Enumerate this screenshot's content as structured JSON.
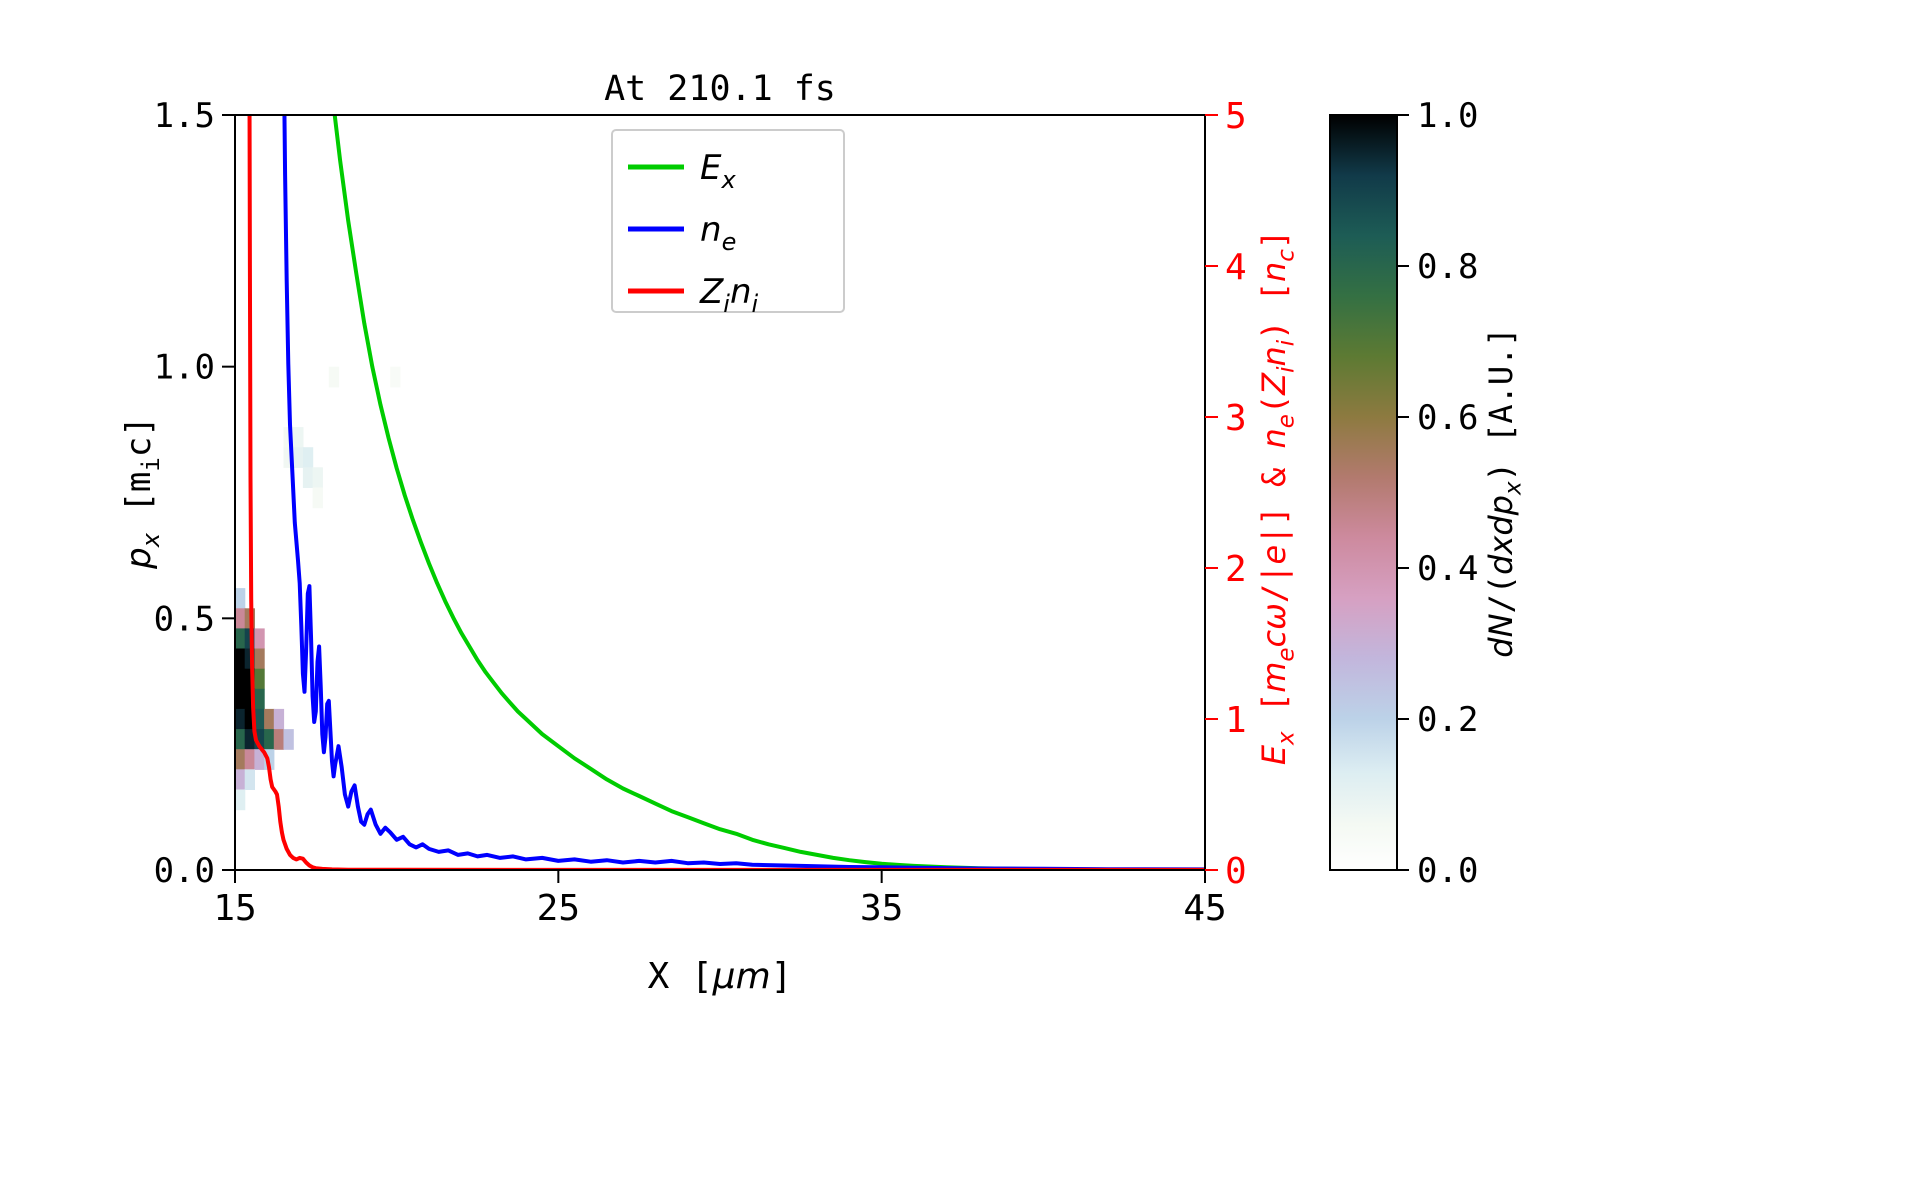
{
  "chart_data": {
    "type": "line",
    "title": "At 210.1 fs",
    "x_axis": {
      "range": [
        15,
        45
      ],
      "ticks": [
        15,
        25,
        35,
        45
      ],
      "tick_labels": [
        "15",
        "25",
        "35",
        "45"
      ],
      "label_segments": [
        {
          "t": "X ["
        },
        {
          "t": "μm",
          "i": true
        },
        {
          "t": "]"
        }
      ]
    },
    "y_left": {
      "range": [
        0.0,
        1.5
      ],
      "ticks": [
        0,
        0.5,
        1.0,
        1.5
      ],
      "tick_labels": [
        "0.0",
        "0.5",
        "1.0",
        "1.5"
      ],
      "label_segments": [
        {
          "t": "p",
          "i": true
        },
        {
          "t": "x",
          "i": true,
          "s": true
        },
        {
          "t": " [m"
        },
        {
          "t": "i",
          "s": true
        },
        {
          "t": "c]"
        }
      ]
    },
    "y_right": {
      "range": [
        0,
        5
      ],
      "ticks": [
        0,
        1,
        2,
        3,
        4,
        5
      ],
      "tick_labels": [
        "0",
        "1",
        "2",
        "3",
        "4",
        "5"
      ],
      "color": "#ff0000",
      "label_segments": [
        {
          "t": "E",
          "i": true
        },
        {
          "t": "x",
          "i": true,
          "s": true
        },
        {
          "t": " ["
        },
        {
          "t": "m",
          "i": true
        },
        {
          "t": "e",
          "i": true,
          "s": true
        },
        {
          "t": "cω",
          "i": true
        },
        {
          "t": "/|"
        },
        {
          "t": "e",
          "i": true
        },
        {
          "t": "|] & "
        },
        {
          "t": "n",
          "i": true
        },
        {
          "t": "e",
          "i": true,
          "s": true
        },
        {
          "t": "("
        },
        {
          "t": "Z",
          "i": true
        },
        {
          "t": "i",
          "i": true,
          "s": true
        },
        {
          "t": "n",
          "i": true
        },
        {
          "t": "i",
          "i": true,
          "s": true
        },
        {
          "t": ") ["
        },
        {
          "t": "n",
          "i": true
        },
        {
          "t": "c",
          "i": true,
          "s": true
        },
        {
          "t": "]"
        }
      ]
    },
    "legend": {
      "entries": [
        {
          "key": "Ex",
          "color": "#00cc00",
          "segments": [
            {
              "t": "E",
              "i": true
            },
            {
              "t": "x",
              "i": true,
              "s": true
            }
          ]
        },
        {
          "key": "ne",
          "color": "#0000ff",
          "segments": [
            {
              "t": "n",
              "i": true
            },
            {
              "t": "e",
              "i": true,
              "s": true
            }
          ]
        },
        {
          "key": "Zini",
          "color": "#ff0000",
          "segments": [
            {
              "t": "Z",
              "i": true
            },
            {
              "t": "i",
              "i": true,
              "s": true
            },
            {
              "t": "n",
              "i": true
            },
            {
              "t": "i",
              "i": true,
              "s": true
            }
          ]
        }
      ]
    },
    "series": [
      {
        "name": "Ex",
        "color": "#00cc00",
        "axis": "right",
        "points": [
          [
            17.25,
            9
          ],
          [
            17.5,
            7.2
          ],
          [
            17.75,
            6
          ],
          [
            18,
            5.15
          ],
          [
            18.25,
            4.7
          ],
          [
            18.5,
            4.3
          ],
          [
            18.75,
            3.95
          ],
          [
            19,
            3.62
          ],
          [
            19.25,
            3.33
          ],
          [
            19.5,
            3.08
          ],
          [
            19.75,
            2.86
          ],
          [
            20,
            2.66
          ],
          [
            20.25,
            2.48
          ],
          [
            20.5,
            2.32
          ],
          [
            20.75,
            2.17
          ],
          [
            21,
            2.03
          ],
          [
            21.25,
            1.9
          ],
          [
            21.5,
            1.78
          ],
          [
            21.75,
            1.67
          ],
          [
            22,
            1.57
          ],
          [
            22.25,
            1.48
          ],
          [
            22.5,
            1.39
          ],
          [
            22.75,
            1.31
          ],
          [
            23,
            1.24
          ],
          [
            23.25,
            1.17
          ],
          [
            23.5,
            1.11
          ],
          [
            23.75,
            1.05
          ],
          [
            24,
            1
          ],
          [
            24.5,
            0.9
          ],
          [
            25,
            0.82
          ],
          [
            25.5,
            0.74
          ],
          [
            26,
            0.67
          ],
          [
            26.5,
            0.6
          ],
          [
            27,
            0.54
          ],
          [
            27.5,
            0.49
          ],
          [
            28,
            0.44
          ],
          [
            28.5,
            0.39
          ],
          [
            29,
            0.35
          ],
          [
            29.5,
            0.31
          ],
          [
            30,
            0.27
          ],
          [
            30.5,
            0.24
          ],
          [
            31,
            0.2
          ],
          [
            31.5,
            0.17
          ],
          [
            32,
            0.145
          ],
          [
            32.5,
            0.12
          ],
          [
            33,
            0.1
          ],
          [
            33.5,
            0.08
          ],
          [
            34,
            0.065
          ],
          [
            34.5,
            0.052
          ],
          [
            35,
            0.042
          ],
          [
            35.5,
            0.034
          ],
          [
            36,
            0.027
          ],
          [
            37,
            0.018
          ],
          [
            38,
            0.012
          ],
          [
            39,
            0.008
          ],
          [
            40,
            0.006
          ],
          [
            41,
            0.004
          ],
          [
            42,
            0.003
          ],
          [
            43.5,
            0.002
          ],
          [
            45,
            0.001
          ]
        ]
      },
      {
        "name": "ne",
        "color": "#0000ff",
        "axis": "right",
        "points": [
          [
            16.42,
            9
          ],
          [
            16.45,
            7
          ],
          [
            16.5,
            5.6
          ],
          [
            16.55,
            4.6
          ],
          [
            16.6,
            3.9
          ],
          [
            16.65,
            3.35
          ],
          [
            16.7,
            2.95
          ],
          [
            16.78,
            2.6
          ],
          [
            16.85,
            2.3
          ],
          [
            16.95,
            2.05
          ],
          [
            17,
            1.9
          ],
          [
            17.05,
            1.62
          ],
          [
            17.1,
            1.3
          ],
          [
            17.15,
            1.18
          ],
          [
            17.2,
            1.45
          ],
          [
            17.25,
            1.83
          ],
          [
            17.3,
            1.88
          ],
          [
            17.35,
            1.55
          ],
          [
            17.4,
            1.15
          ],
          [
            17.45,
            0.98
          ],
          [
            17.5,
            1.05
          ],
          [
            17.55,
            1.38
          ],
          [
            17.6,
            1.48
          ],
          [
            17.65,
            1.22
          ],
          [
            17.7,
            0.9
          ],
          [
            17.75,
            0.78
          ],
          [
            17.8,
            0.88
          ],
          [
            17.85,
            1.1
          ],
          [
            17.9,
            1.12
          ],
          [
            17.95,
            0.92
          ],
          [
            18,
            0.72
          ],
          [
            18.05,
            0.62
          ],
          [
            18.1,
            0.7
          ],
          [
            18.2,
            0.82
          ],
          [
            18.3,
            0.68
          ],
          [
            18.4,
            0.5
          ],
          [
            18.5,
            0.42
          ],
          [
            18.6,
            0.52
          ],
          [
            18.7,
            0.56
          ],
          [
            18.8,
            0.42
          ],
          [
            18.9,
            0.32
          ],
          [
            19,
            0.3
          ],
          [
            19.1,
            0.37
          ],
          [
            19.2,
            0.4
          ],
          [
            19.35,
            0.3
          ],
          [
            19.5,
            0.24
          ],
          [
            19.65,
            0.28
          ],
          [
            19.8,
            0.25
          ],
          [
            20,
            0.2
          ],
          [
            20.2,
            0.22
          ],
          [
            20.4,
            0.17
          ],
          [
            20.6,
            0.15
          ],
          [
            20.8,
            0.17
          ],
          [
            21,
            0.14
          ],
          [
            21.3,
            0.12
          ],
          [
            21.6,
            0.13
          ],
          [
            21.9,
            0.1
          ],
          [
            22.2,
            0.11
          ],
          [
            22.5,
            0.09
          ],
          [
            22.8,
            0.1
          ],
          [
            23.2,
            0.08
          ],
          [
            23.6,
            0.09
          ],
          [
            24,
            0.07
          ],
          [
            24.5,
            0.08
          ],
          [
            25,
            0.06
          ],
          [
            25.5,
            0.07
          ],
          [
            26,
            0.055
          ],
          [
            26.5,
            0.065
          ],
          [
            27,
            0.05
          ],
          [
            27.5,
            0.06
          ],
          [
            28,
            0.05
          ],
          [
            28.5,
            0.06
          ],
          [
            29,
            0.045
          ],
          [
            29.5,
            0.05
          ],
          [
            30,
            0.04
          ],
          [
            30.5,
            0.045
          ],
          [
            31,
            0.035
          ],
          [
            32,
            0.03
          ],
          [
            33,
            0.025
          ],
          [
            34,
            0.02
          ],
          [
            35,
            0.018
          ],
          [
            36,
            0.015
          ],
          [
            38,
            0.01
          ],
          [
            40,
            0.008
          ],
          [
            42,
            0.005
          ],
          [
            45,
            0.004
          ]
        ]
      },
      {
        "name": "Zini",
        "color": "#ff0000",
        "axis": "right",
        "points": [
          [
            15.42,
            9
          ],
          [
            15.44,
            6
          ],
          [
            15.46,
            4
          ],
          [
            15.48,
            2.6
          ],
          [
            15.5,
            1.8
          ],
          [
            15.53,
            1.35
          ],
          [
            15.56,
            1.08
          ],
          [
            15.6,
            0.92
          ],
          [
            15.65,
            0.86
          ],
          [
            15.75,
            0.82
          ],
          [
            15.9,
            0.78
          ],
          [
            16,
            0.74
          ],
          [
            16.05,
            0.68
          ],
          [
            16.1,
            0.6
          ],
          [
            16.15,
            0.55
          ],
          [
            16.25,
            0.52
          ],
          [
            16.3,
            0.5
          ],
          [
            16.35,
            0.42
          ],
          [
            16.4,
            0.32
          ],
          [
            16.45,
            0.25
          ],
          [
            16.5,
            0.2
          ],
          [
            16.6,
            0.14
          ],
          [
            16.7,
            0.1
          ],
          [
            16.8,
            0.08
          ],
          [
            16.9,
            0.07
          ],
          [
            17,
            0.08
          ],
          [
            17.1,
            0.075
          ],
          [
            17.2,
            0.05
          ],
          [
            17.3,
            0.03
          ],
          [
            17.4,
            0.018
          ],
          [
            17.5,
            0.012
          ],
          [
            17.7,
            0.007
          ],
          [
            18,
            0.004
          ],
          [
            18.5,
            0.002
          ],
          [
            19,
            0.001
          ],
          [
            20,
            0.001
          ],
          [
            45,
            0.0005
          ]
        ]
      }
    ],
    "heatmap": {
      "cell_w": 0.3,
      "cell_h": 0.04,
      "cells": [
        [
          15.0,
          0.52,
          0.2
        ],
        [
          15.0,
          0.48,
          0.45
        ],
        [
          15.3,
          0.48,
          0.55
        ],
        [
          15.0,
          0.44,
          0.8
        ],
        [
          15.3,
          0.44,
          0.9
        ],
        [
          15.6,
          0.44,
          0.4
        ],
        [
          15.0,
          0.4,
          1.0
        ],
        [
          15.3,
          0.4,
          0.95
        ],
        [
          15.6,
          0.4,
          0.55
        ],
        [
          15.0,
          0.36,
          1.0
        ],
        [
          15.3,
          0.36,
          1.0
        ],
        [
          15.6,
          0.36,
          0.7
        ],
        [
          15.0,
          0.32,
          1.0
        ],
        [
          15.3,
          0.32,
          1.0
        ],
        [
          15.6,
          0.32,
          0.8
        ],
        [
          15.0,
          0.28,
          0.95
        ],
        [
          15.3,
          0.28,
          1.0
        ],
        [
          15.6,
          0.28,
          0.85
        ],
        [
          15.9,
          0.28,
          0.55
        ],
        [
          16.2,
          0.28,
          0.3
        ],
        [
          15.0,
          0.24,
          0.8
        ],
        [
          15.3,
          0.24,
          0.95
        ],
        [
          15.6,
          0.24,
          0.9
        ],
        [
          15.9,
          0.24,
          0.8
        ],
        [
          16.2,
          0.24,
          0.5
        ],
        [
          16.5,
          0.24,
          0.25
        ],
        [
          15.0,
          0.2,
          0.55
        ],
        [
          15.3,
          0.2,
          0.45
        ],
        [
          15.6,
          0.2,
          0.3
        ],
        [
          15.9,
          0.2,
          0.2
        ],
        [
          15.0,
          0.16,
          0.3
        ],
        [
          15.3,
          0.16,
          0.15
        ],
        [
          15.0,
          0.12,
          0.12
        ],
        [
          16.5,
          0.84,
          0.06
        ],
        [
          16.8,
          0.84,
          0.08
        ],
        [
          16.8,
          0.8,
          0.1
        ],
        [
          17.1,
          0.8,
          0.12
        ],
        [
          16.5,
          0.8,
          0.07
        ],
        [
          17.1,
          0.76,
          0.1
        ],
        [
          17.4,
          0.76,
          0.08
        ],
        [
          17.4,
          0.72,
          0.05
        ],
        [
          17.9,
          0.96,
          0.05
        ],
        [
          19.8,
          0.96,
          0.04
        ]
      ]
    },
    "colormap": {
      "stops": [
        [
          0.0,
          "#ffffff"
        ],
        [
          0.06,
          "#f4f9f3"
        ],
        [
          0.13,
          "#dcedf2"
        ],
        [
          0.2,
          "#bcd2e8"
        ],
        [
          0.28,
          "#c2b6dc"
        ],
        [
          0.36,
          "#d6a0c2"
        ],
        [
          0.44,
          "#cd8a9e"
        ],
        [
          0.52,
          "#b27a6e"
        ],
        [
          0.6,
          "#8d7a40"
        ],
        [
          0.68,
          "#5d7a33"
        ],
        [
          0.76,
          "#347043"
        ],
        [
          0.84,
          "#1d5c55"
        ],
        [
          0.92,
          "#113a49"
        ],
        [
          1.0,
          "#000000"
        ]
      ]
    },
    "colorbar": {
      "ticks": [
        0,
        0.2,
        0.4,
        0.6,
        0.8,
        1.0
      ],
      "tick_labels": [
        "0.0",
        "0.2",
        "0.4",
        "0.6",
        "0.8",
        "1.0"
      ],
      "label_segments": [
        {
          "t": "dN",
          "i": true
        },
        {
          "t": "/("
        },
        {
          "t": "dxdp",
          "i": true
        },
        {
          "t": "x",
          "i": true,
          "s": true
        },
        {
          "t": ") ["
        },
        {
          "t": "A.U."
        },
        {
          "t": "]"
        }
      ]
    }
  }
}
